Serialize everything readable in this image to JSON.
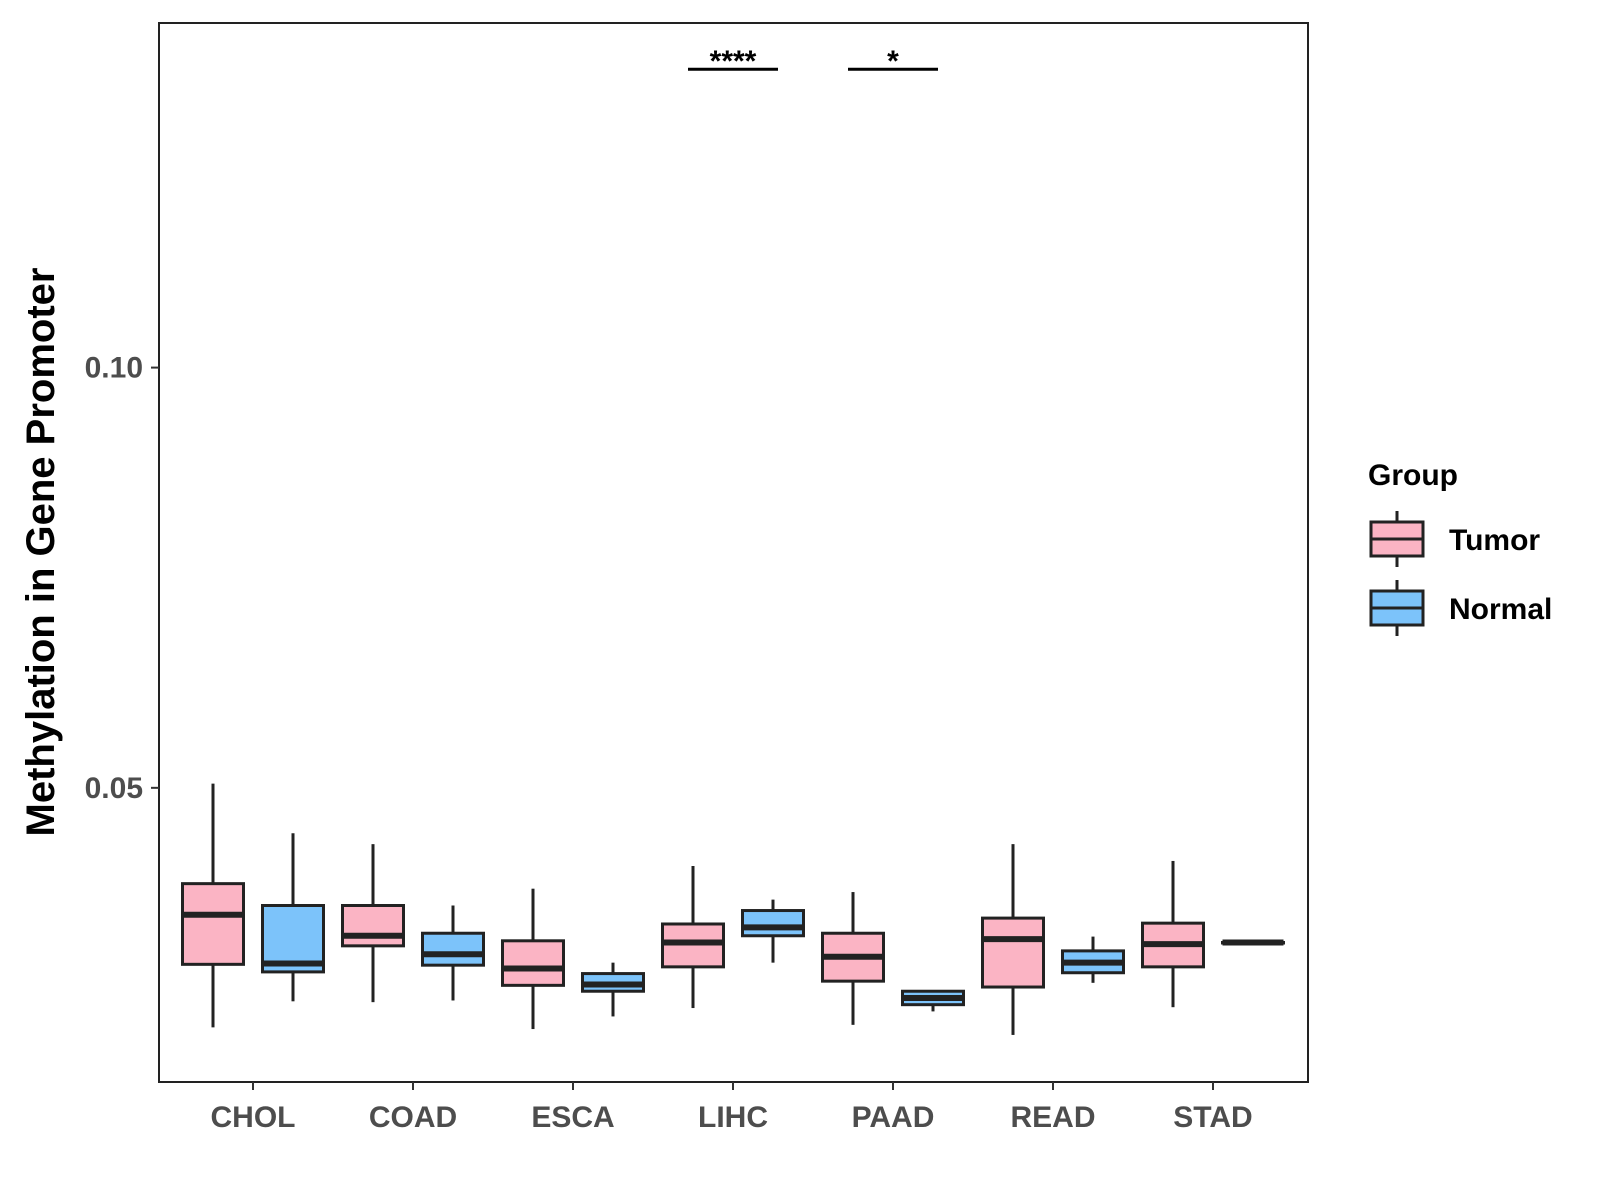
{
  "chart_data": {
    "type": "boxplot",
    "title": "",
    "xlabel": "",
    "ylabel": "Methylation in Gene Promoter",
    "ylim": [
      0.015,
      0.141
    ],
    "yticks": [
      0.05,
      0.1
    ],
    "ytick_labels": [
      "0.05",
      "0.10"
    ],
    "categories": [
      "CHOL",
      "COAD",
      "ESCA",
      "LIHC",
      "PAAD",
      "READ",
      "STAD"
    ],
    "legend": {
      "title": "Group",
      "position": "right",
      "entries": [
        {
          "name": "Tumor",
          "color": "#fbb4c4"
        },
        {
          "name": "Normal",
          "color": "#7cc3fa"
        }
      ]
    },
    "series": [
      {
        "name": "Tumor",
        "color": "#fbb4c4",
        "boxes": [
          {
            "category": "CHOL",
            "min": 0.0215,
            "q1": 0.029,
            "median": 0.0349,
            "q3": 0.0386,
            "max": 0.0505
          },
          {
            "category": "COAD",
            "min": 0.0245,
            "q1": 0.0312,
            "median": 0.0324,
            "q3": 0.036,
            "max": 0.0433
          },
          {
            "category": "ESCA",
            "min": 0.0213,
            "q1": 0.0265,
            "median": 0.0285,
            "q3": 0.0318,
            "max": 0.038
          },
          {
            "category": "LIHC",
            "min": 0.0238,
            "q1": 0.0287,
            "median": 0.0316,
            "q3": 0.0338,
            "max": 0.0407
          },
          {
            "category": "PAAD",
            "min": 0.0218,
            "q1": 0.027,
            "median": 0.0299,
            "q3": 0.0327,
            "max": 0.0376
          },
          {
            "category": "READ",
            "min": 0.0206,
            "q1": 0.0263,
            "median": 0.032,
            "q3": 0.0345,
            "max": 0.0433
          },
          {
            "category": "STAD",
            "min": 0.0239,
            "q1": 0.0287,
            "median": 0.0314,
            "q3": 0.0339,
            "max": 0.0413
          }
        ]
      },
      {
        "name": "Normal",
        "color": "#7cc3fa",
        "boxes": [
          {
            "category": "CHOL",
            "min": 0.0246,
            "q1": 0.0281,
            "median": 0.0291,
            "q3": 0.036,
            "max": 0.0446
          },
          {
            "category": "COAD",
            "min": 0.0247,
            "q1": 0.0289,
            "median": 0.0302,
            "q3": 0.0327,
            "max": 0.036
          },
          {
            "category": "ESCA",
            "min": 0.0228,
            "q1": 0.0258,
            "median": 0.0266,
            "q3": 0.0279,
            "max": 0.0292
          },
          {
            "category": "LIHC",
            "min": 0.0292,
            "q1": 0.0324,
            "median": 0.0334,
            "q3": 0.0354,
            "max": 0.0367
          },
          {
            "category": "PAAD",
            "min": 0.0234,
            "q1": 0.0242,
            "median": 0.025,
            "q3": 0.0258,
            "max": 0.0258
          },
          {
            "category": "READ",
            "min": 0.0268,
            "q1": 0.028,
            "median": 0.0292,
            "q3": 0.0306,
            "max": 0.0323
          },
          {
            "category": "STAD",
            "min": 0.0316,
            "q1": 0.0316,
            "median": 0.0316,
            "q3": 0.0316,
            "max": 0.0316
          }
        ]
      }
    ],
    "annotations": [
      {
        "category": "LIHC",
        "text": "****",
        "y": 0.1355
      },
      {
        "category": "PAAD",
        "text": "*",
        "y": 0.1355
      }
    ]
  }
}
